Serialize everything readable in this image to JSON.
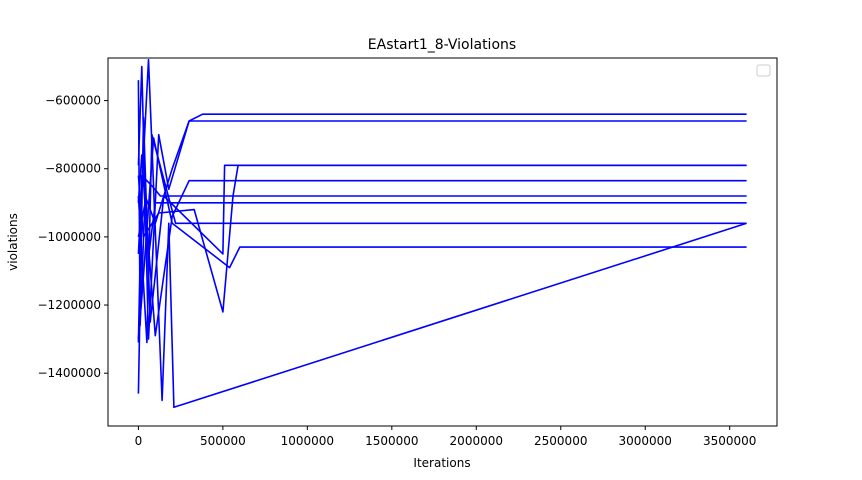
{
  "chart_data": {
    "type": "line",
    "title": "EAstart1_8-Violations",
    "xlabel": "Iterations",
    "ylabel": "violations",
    "xlim": [
      -180000,
      3780000
    ],
    "ylim": [
      -1555000,
      -475000
    ],
    "x_ticks": [
      0,
      500000,
      1000000,
      1500000,
      2000000,
      2500000,
      3000000,
      3500000
    ],
    "x_tick_labels": [
      "0",
      "500000",
      "1000000",
      "1500000",
      "2000000",
      "2500000",
      "3000000",
      "3500000"
    ],
    "y_ticks": [
      -1400000,
      -1200000,
      -1000000,
      -800000,
      -600000
    ],
    "y_tick_labels": [
      "−1400000",
      "−1200000",
      "−1000000",
      "−800000",
      "−600000"
    ],
    "grid": false,
    "legend": {
      "placement": "top-right",
      "entries": []
    },
    "line_color": "#0000ff",
    "series": [
      {
        "x": [
          0,
          20000,
          60000,
          120000,
          180000,
          300000,
          380000,
          3600000
        ],
        "y": [
          -790000,
          -500000,
          -1300000,
          -700000,
          -860000,
          -660000,
          -640000,
          -640000
        ]
      },
      {
        "x": [
          0,
          10000,
          40000,
          100000,
          200000,
          300000,
          3600000
        ],
        "y": [
          -540000,
          -1260000,
          -880000,
          -960000,
          -800000,
          -660000,
          -660000
        ]
      },
      {
        "x": [
          0,
          30000,
          70000,
          150000,
          500000,
          510000,
          3600000
        ],
        "y": [
          -1460000,
          -650000,
          -1250000,
          -880000,
          -1050000,
          -790000,
          -790000
        ]
      },
      {
        "x": [
          0,
          20000,
          80000,
          130000,
          3600000
        ],
        "y": [
          -1310000,
          -820000,
          -850000,
          -880000,
          -880000
        ]
      },
      {
        "x": [
          0,
          40000,
          100000,
          200000,
          300000,
          3600000
        ],
        "y": [
          -1000000,
          -900000,
          -1290000,
          -940000,
          -835000,
          -835000
        ]
      },
      {
        "x": [
          0,
          20000,
          60000,
          100000,
          200000,
          3600000
        ],
        "y": [
          -900000,
          -760000,
          -1060000,
          -900000,
          -900000,
          -900000
        ]
      },
      {
        "x": [
          0,
          30000,
          120000,
          330000,
          500000,
          560000,
          590000,
          3600000
        ],
        "y": [
          -820000,
          -1000000,
          -930000,
          -920000,
          -1220000,
          -880000,
          -790000,
          -790000
        ]
      },
      {
        "x": [
          0,
          50000,
          80000,
          220000,
          3600000
        ],
        "y": [
          -880000,
          -1310000,
          -700000,
          -960000,
          -960000
        ]
      },
      {
        "x": [
          0,
          60000,
          140000,
          180000,
          210000,
          3600000
        ],
        "y": [
          -1050000,
          -480000,
          -1480000,
          -960000,
          -1500000,
          -960000
        ]
      },
      {
        "x": [
          0,
          20000,
          90000,
          200000,
          540000,
          600000,
          3600000
        ],
        "y": [
          -1300000,
          -1180000,
          -710000,
          -960000,
          -1090000,
          -1030000,
          -1030000
        ]
      }
    ]
  }
}
